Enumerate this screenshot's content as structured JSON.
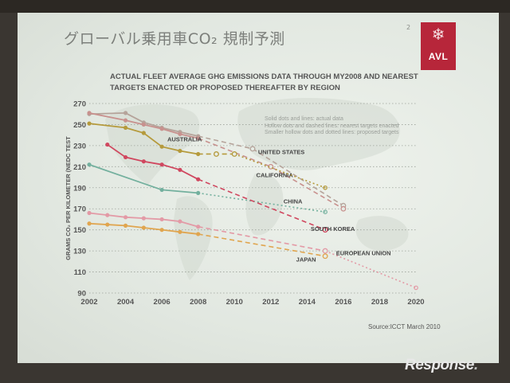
{
  "slide": {
    "title": "グローバル乗用車CO₂ 規制予測",
    "page_number": "2",
    "logo_text": "AVL",
    "source": "Source:ICCT March 2010"
  },
  "notes": [
    "Solid dots and lines: actual data",
    "Hollow dots and dashed lines: nearest targets enacted",
    "Smaller hollow dots and dotted lines: proposed targets"
  ],
  "watermark": {
    "main": "Response",
    "dot": "."
  },
  "colors": {
    "united_states": "#b5a39a",
    "california": "#c8918e",
    "australia": "#b59a3c",
    "china": "#73b09e",
    "south_korea": "#d0475f",
    "european_union": "#e39aa6",
    "japan": "#e0a54f"
  },
  "chart_data": {
    "type": "line",
    "title": "ACTUAL FLEET AVERAGE GHG EMISSIONS DATA THROUGH MY2008 AND NEAREST TARGETS ENACTED OR PROPOSED THEREAFTER BY REGION",
    "xlabel": "",
    "ylabel": "GRAMS CO₂ PER KILOMETER (NEDC TEST",
    "xlim": [
      2002,
      2020
    ],
    "ylim": [
      90,
      270
    ],
    "xticks": [
      2002,
      2004,
      2006,
      2008,
      2010,
      2012,
      2014,
      2016,
      2018,
      2020
    ],
    "yticks": [
      90,
      110,
      130,
      150,
      170,
      190,
      210,
      230,
      250,
      270
    ],
    "grid": "horizontal-dotted",
    "series": [
      {
        "name": "UNITED STATES",
        "color_key": "united_states",
        "actual": [
          [
            2002,
            260
          ],
          [
            2004,
            261
          ],
          [
            2005,
            252
          ],
          [
            2006,
            247
          ],
          [
            2007,
            243
          ],
          [
            2008,
            239
          ]
        ],
        "enacted": [
          [
            2008,
            239
          ],
          [
            2011,
            227
          ],
          [
            2016,
            173
          ]
        ],
        "proposed": [],
        "label_at": [
          2011.3,
          222
        ]
      },
      {
        "name": "CALIFORNIA",
        "color_key": "california",
        "actual": [
          [
            2002,
            261
          ],
          [
            2004,
            254
          ],
          [
            2005,
            250
          ],
          [
            2006,
            246
          ],
          [
            2007,
            241
          ],
          [
            2008,
            237
          ]
        ],
        "enacted": [
          [
            2008,
            237
          ],
          [
            2012,
            210
          ],
          [
            2016,
            170
          ]
        ],
        "proposed": [],
        "label_at": [
          2011.2,
          200
        ]
      },
      {
        "name": "AUSTRALIA",
        "color_key": "australia",
        "actual": [
          [
            2002,
            251
          ],
          [
            2004,
            247
          ],
          [
            2005,
            242
          ],
          [
            2006,
            229
          ],
          [
            2007,
            225
          ],
          [
            2008,
            222
          ]
        ],
        "enacted": [
          [
            2008,
            222
          ],
          [
            2009,
            222
          ],
          [
            2010,
            222
          ]
        ],
        "proposed": [
          [
            2010,
            222
          ],
          [
            2015,
            190
          ]
        ],
        "label_at": [
          2006.3,
          234
        ]
      },
      {
        "name": "CHINA",
        "color_key": "china",
        "actual": [
          [
            2002,
            212
          ],
          [
            2006,
            188
          ],
          [
            2008,
            185
          ]
        ],
        "enacted": [],
        "proposed": [
          [
            2008,
            185
          ],
          [
            2015,
            167
          ]
        ],
        "label_at": [
          2012.7,
          175
        ]
      },
      {
        "name": "SOUTH KOREA",
        "color_key": "south_korea",
        "actual": [
          [
            2003,
            231
          ],
          [
            2004,
            219
          ],
          [
            2005,
            215
          ],
          [
            2006,
            212
          ],
          [
            2007,
            207
          ],
          [
            2008,
            198
          ]
        ],
        "enacted": [
          [
            2008,
            198
          ],
          [
            2015,
            150
          ]
        ],
        "proposed": [],
        "label_at": [
          2014.2,
          149
        ]
      },
      {
        "name": "EUROPEAN UNION",
        "color_key": "european_union",
        "actual": [
          [
            2002,
            166
          ],
          [
            2003,
            164
          ],
          [
            2004,
            162
          ],
          [
            2005,
            161
          ],
          [
            2006,
            160
          ],
          [
            2007,
            158
          ],
          [
            2008,
            153
          ]
        ],
        "enacted": [
          [
            2008,
            153
          ],
          [
            2015,
            130
          ]
        ],
        "proposed": [
          [
            2015,
            130
          ],
          [
            2020,
            95
          ]
        ],
        "label_at": [
          2015.6,
          126
        ]
      },
      {
        "name": "JAPAN",
        "color_key": "japan",
        "actual": [
          [
            2002,
            156
          ],
          [
            2003,
            155
          ],
          [
            2004,
            154
          ],
          [
            2005,
            152
          ],
          [
            2006,
            150
          ],
          [
            2007,
            148
          ],
          [
            2008,
            146
          ]
        ],
        "enacted": [
          [
            2008,
            146
          ],
          [
            2015,
            125
          ]
        ],
        "proposed": [],
        "label_at": [
          2013.4,
          120
        ]
      }
    ]
  }
}
